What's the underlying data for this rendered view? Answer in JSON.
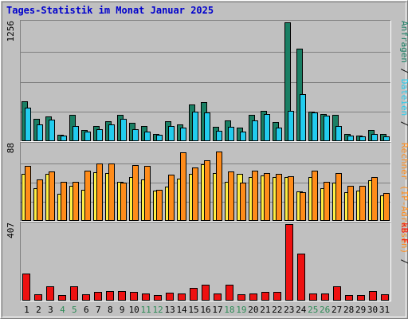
{
  "title": "Tages-Statistik im Monat Januar 2025",
  "colors": {
    "background": "#c0c0c0",
    "plot_background": "#c0c0c0",
    "title_text": "#0000cc",
    "weekday_label": "#000000",
    "weekend_label": "#2e8b57",
    "hits": "#1a7f64",
    "files": "#22ccee",
    "pages": "#ffee44",
    "visits": "#ff8c1a",
    "kbytes": "#ee1111"
  },
  "chart_data": [
    {
      "type": "bar",
      "title": "Tages-Statistik im Monat Januar 2025",
      "categories": [
        "1",
        "2",
        "3",
        "4",
        "5",
        "6",
        "7",
        "8",
        "9",
        "10",
        "11",
        "12",
        "13",
        "14",
        "15",
        "16",
        "17",
        "18",
        "19",
        "20",
        "21",
        "22",
        "23",
        "24",
        "25",
        "26",
        "27",
        "28",
        "29",
        "30",
        "31"
      ],
      "weekend_days": [
        "4",
        "5",
        "11",
        "12",
        "18",
        "19",
        "25",
        "26"
      ],
      "ymax_label": "1256",
      "ylim": [
        0,
        1256
      ],
      "grid": true,
      "right_label_parts": [
        "Anfragen",
        " / ",
        "Dateien",
        " / "
      ],
      "series": [
        {
          "name": "Anfragen",
          "color": "#1a7f64",
          "values": [
            420,
            240,
            260,
            70,
            280,
            120,
            160,
            210,
            280,
            190,
            160,
            80,
            210,
            180,
            390,
            410,
            150,
            220,
            140,
            280,
            320,
            200,
            1256,
            980,
            310,
            290,
            280,
            80,
            60,
            120,
            80
          ]
        },
        {
          "name": "Dateien",
          "color": "#22ccee",
          "values": [
            350,
            180,
            230,
            60,
            160,
            100,
            130,
            180,
            240,
            130,
            100,
            70,
            160,
            140,
            310,
            300,
            110,
            150,
            100,
            220,
            290,
            140,
            320,
            500,
            300,
            270,
            160,
            60,
            50,
            80,
            50
          ]
        }
      ]
    },
    {
      "type": "bar",
      "ymax_label": "88",
      "ylim": [
        0,
        88
      ],
      "grid": true,
      "right_label_parts": [
        "Rechner (IP-Adressen)",
        " / "
      ],
      "series": [
        {
          "name": "Seiten",
          "color": "#ffee44",
          "values": [
            54,
            38,
            54,
            31,
            40,
            36,
            56,
            55,
            45,
            50,
            48,
            35,
            39,
            49,
            54,
            65,
            55,
            45,
            54,
            50,
            52,
            50,
            50,
            34,
            50,
            38,
            44,
            33,
            35,
            47,
            29
          ]
        },
        {
          "name": "Rechner (IP-Adressen)",
          "color": "#ff8c1a",
          "values": [
            63,
            48,
            57,
            45,
            45,
            58,
            66,
            66,
            44,
            64,
            63,
            36,
            53,
            79,
            61,
            70,
            80,
            57,
            44,
            58,
            55,
            54,
            51,
            33,
            58,
            45,
            55,
            40,
            40,
            50,
            32
          ]
        }
      ]
    },
    {
      "type": "bar",
      "ymax_label": "407",
      "ylim": [
        0,
        407
      ],
      "grid": false,
      "right_label_parts": [
        "kB F"
      ],
      "series": [
        {
          "name": "kB F",
          "color": "#ee1111",
          "values": [
            145,
            35,
            78,
            30,
            75,
            33,
            45,
            50,
            50,
            45,
            40,
            28,
            42,
            40,
            68,
            85,
            40,
            85,
            35,
            40,
            45,
            45,
            407,
            250,
            40,
            40,
            75,
            28,
            28,
            50,
            32
          ]
        }
      ]
    }
  ]
}
